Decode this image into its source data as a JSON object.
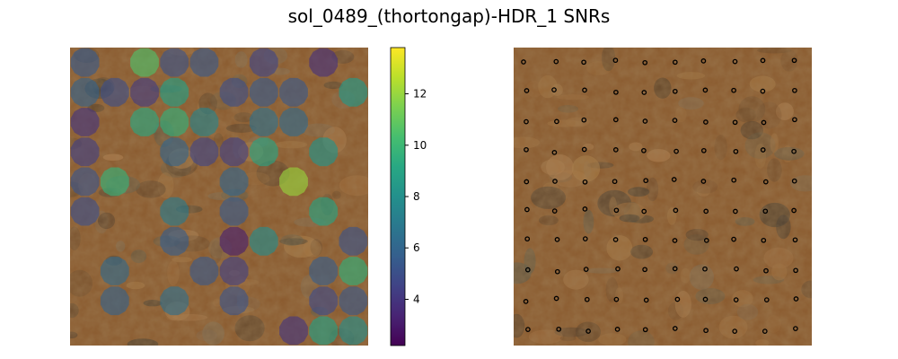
{
  "chart_data": {
    "title": "sol_0489_(thortongap)-HDR_1 SNRs",
    "panels": [
      {
        "type": "heatmap",
        "name": "",
        "grid": {
          "rows": 10,
          "cols": 10
        },
        "cells": [
          {
            "row": 0,
            "col": 0,
            "snr": 5.5
          },
          {
            "row": 0,
            "col": 2,
            "snr": 10.5
          },
          {
            "row": 0,
            "col": 3,
            "snr": 5.2
          },
          {
            "row": 0,
            "col": 4,
            "snr": 5.4
          },
          {
            "row": 0,
            "col": 6,
            "snr": 4.6
          },
          {
            "row": 0,
            "col": 8,
            "snr": 3.8
          },
          {
            "row": 1,
            "col": 0,
            "snr": 5.8
          },
          {
            "row": 1,
            "col": 1,
            "snr": 5.0
          },
          {
            "row": 1,
            "col": 2,
            "snr": 4.2
          },
          {
            "row": 1,
            "col": 3,
            "snr": 8.8
          },
          {
            "row": 1,
            "col": 5,
            "snr": 5.0
          },
          {
            "row": 1,
            "col": 6,
            "snr": 5.5
          },
          {
            "row": 1,
            "col": 7,
            "snr": 5.4
          },
          {
            "row": 1,
            "col": 9,
            "snr": 8.5
          },
          {
            "row": 2,
            "col": 0,
            "snr": 4.0
          },
          {
            "row": 2,
            "col": 2,
            "snr": 9.2
          },
          {
            "row": 2,
            "col": 3,
            "snr": 9.6
          },
          {
            "row": 2,
            "col": 4,
            "snr": 7.5
          },
          {
            "row": 2,
            "col": 6,
            "snr": 6.5
          },
          {
            "row": 2,
            "col": 7,
            "snr": 6.2
          },
          {
            "row": 3,
            "col": 0,
            "snr": 4.4
          },
          {
            "row": 3,
            "col": 3,
            "snr": 6.0
          },
          {
            "row": 3,
            "col": 4,
            "snr": 4.6
          },
          {
            "row": 3,
            "col": 5,
            "snr": 4.4
          },
          {
            "row": 3,
            "col": 6,
            "snr": 9.0
          },
          {
            "row": 3,
            "col": 8,
            "snr": 8.2
          },
          {
            "row": 4,
            "col": 0,
            "snr": 5.2
          },
          {
            "row": 4,
            "col": 1,
            "snr": 9.8
          },
          {
            "row": 4,
            "col": 5,
            "snr": 6.0
          },
          {
            "row": 4,
            "col": 7,
            "snr": 12.0
          },
          {
            "row": 5,
            "col": 0,
            "snr": 5.0
          },
          {
            "row": 5,
            "col": 3,
            "snr": 7.0
          },
          {
            "row": 5,
            "col": 5,
            "snr": 5.5
          },
          {
            "row": 5,
            "col": 8,
            "snr": 9.0
          },
          {
            "row": 6,
            "col": 3,
            "snr": 5.6
          },
          {
            "row": 6,
            "col": 5,
            "snr": 3.2
          },
          {
            "row": 6,
            "col": 6,
            "snr": 7.8
          },
          {
            "row": 6,
            "col": 9,
            "snr": 5.2
          },
          {
            "row": 7,
            "col": 1,
            "snr": 6.2
          },
          {
            "row": 7,
            "col": 4,
            "snr": 5.4
          },
          {
            "row": 7,
            "col": 5,
            "snr": 4.4
          },
          {
            "row": 7,
            "col": 8,
            "snr": 5.6
          },
          {
            "row": 7,
            "col": 9,
            "snr": 9.6
          },
          {
            "row": 8,
            "col": 1,
            "snr": 5.8
          },
          {
            "row": 8,
            "col": 3,
            "snr": 6.4
          },
          {
            "row": 8,
            "col": 5,
            "snr": 5.2
          },
          {
            "row": 8,
            "col": 8,
            "snr": 4.8
          },
          {
            "row": 8,
            "col": 9,
            "snr": 5.4
          },
          {
            "row": 9,
            "col": 7,
            "snr": 4.0
          },
          {
            "row": 9,
            "col": 8,
            "snr": 8.8
          },
          {
            "row": 9,
            "col": 9,
            "snr": 8.0
          }
        ]
      },
      {
        "type": "scatter",
        "name": "",
        "grid": {
          "rows": 10,
          "cols": 10
        },
        "marker": "hollow circle",
        "points": "all 100 grid sample locations"
      }
    ],
    "colorbar": {
      "colormap": "viridis",
      "range": [
        2.2,
        13.8
      ],
      "ticks": [
        4,
        6,
        8,
        10,
        12
      ],
      "tick_labels": [
        "4",
        "6",
        "8",
        "10",
        "12"
      ]
    },
    "axes_visible": false,
    "grid": false
  },
  "colors": {
    "rock_base": "#8a5a2e",
    "marker_stroke": "#000000",
    "background": "#ffffff"
  }
}
